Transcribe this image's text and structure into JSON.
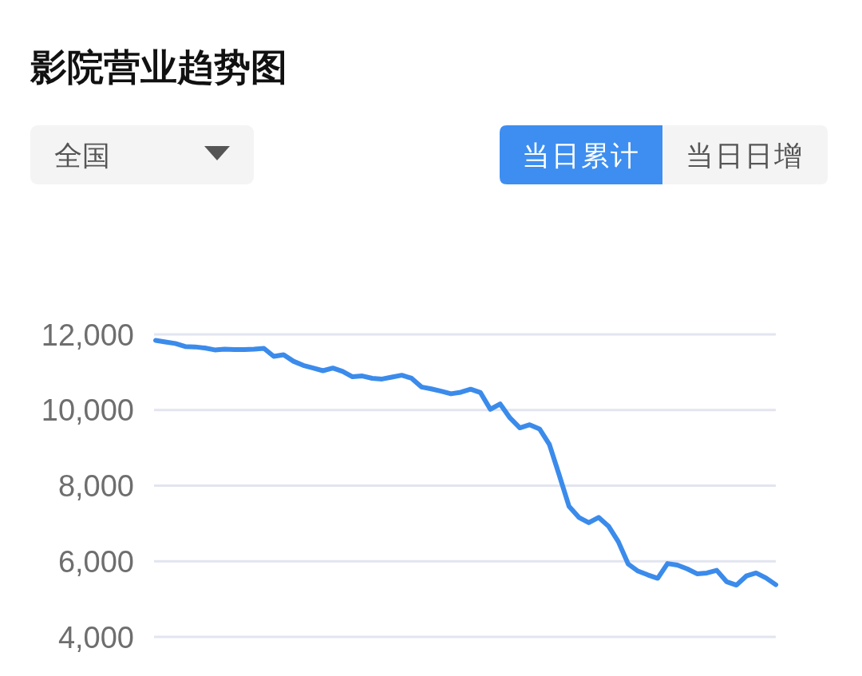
{
  "chart_data": {
    "type": "line",
    "title": "影院营业趋势图",
    "annotations": [
      "全国",
      "当日累计",
      "当日日增"
    ],
    "categories": [
      null,
      null,
      null,
      null,
      null,
      null,
      null,
      null,
      null,
      null,
      null,
      null,
      null,
      null,
      null,
      null,
      null,
      null,
      null,
      null,
      null,
      null,
      null,
      null,
      null,
      null,
      null,
      null,
      null,
      null,
      null,
      null,
      null,
      null,
      null,
      null,
      null,
      null,
      null,
      null,
      null,
      null,
      null,
      null,
      null,
      null,
      null,
      null,
      null,
      null,
      null,
      null,
      null,
      null,
      null,
      null,
      null,
      null,
      null,
      null,
      null,
      null,
      null,
      null
    ],
    "values": [
      11840,
      11800,
      11760,
      11680,
      11670,
      11640,
      11590,
      11610,
      11600,
      11600,
      11610,
      11630,
      11420,
      11460,
      11290,
      11180,
      11110,
      11040,
      11110,
      11020,
      10880,
      10900,
      10840,
      10820,
      10870,
      10920,
      10840,
      10610,
      10560,
      10500,
      10430,
      10470,
      10550,
      10460,
      10020,
      10160,
      9790,
      9530,
      9610,
      9500,
      9090,
      8280,
      7450,
      7160,
      7020,
      7160,
      6930,
      6520,
      5930,
      5740,
      5640,
      5550,
      5940,
      5900,
      5800,
      5670,
      5690,
      5760,
      5460,
      5370,
      5610,
      5690,
      5560,
      5380
    ],
    "color": "#3b8beb",
    "ylim": [
      4000,
      12000
    ],
    "yticks": [
      {
        "value": 4000,
        "label": "4,000"
      },
      {
        "value": 6000,
        "label": "6,000"
      },
      {
        "value": 8000,
        "label": "8,000"
      },
      {
        "value": 10000,
        "label": "10,000"
      },
      {
        "value": 12000,
        "label": "12,000"
      }
    ],
    "grid": "y",
    "tick_labels": "y"
  }
}
